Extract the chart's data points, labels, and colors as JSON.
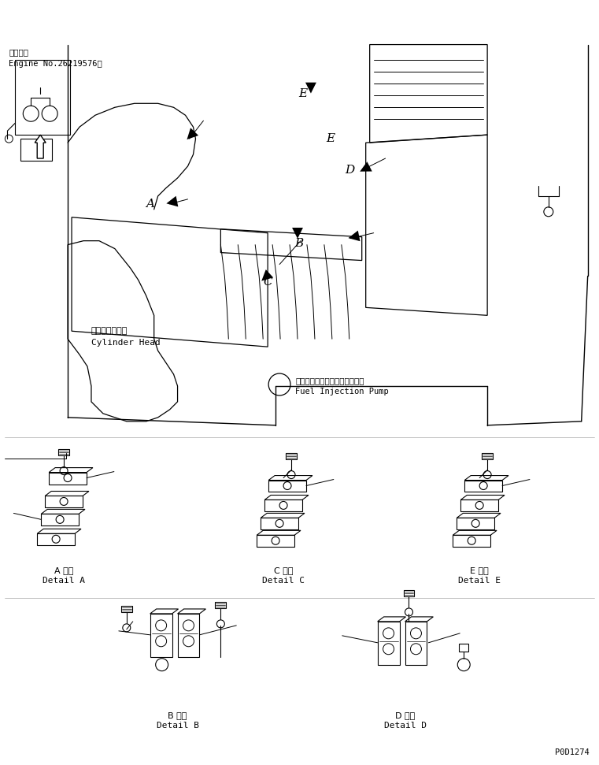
{
  "background_color": "#ffffff",
  "line_color": "#000000",
  "fig_width": 7.61,
  "fig_height": 9.71,
  "dpi": 100,
  "texts": {
    "tekiyo": "適用号機",
    "engine_no": "Engine No.26219576～",
    "cyl_jp": "シリンダヘッド",
    "cyl_en": "Cylinder Head",
    "pump_jp": "フェルインジェクションポンプ",
    "pump_en": "Fuel Injection Pump",
    "det_a_jp": "A 詳細",
    "det_a_en": "Detail A",
    "det_b_jp": "B 詳細",
    "det_b_en": "Detail B",
    "det_c_jp": "C 詳細",
    "det_c_en": "Detail C",
    "det_d_jp": "D 詳細",
    "det_d_en": "Detail D",
    "det_e_jp": "E 詳細",
    "det_e_en": "Detail E",
    "part_no": "P0D1274"
  }
}
